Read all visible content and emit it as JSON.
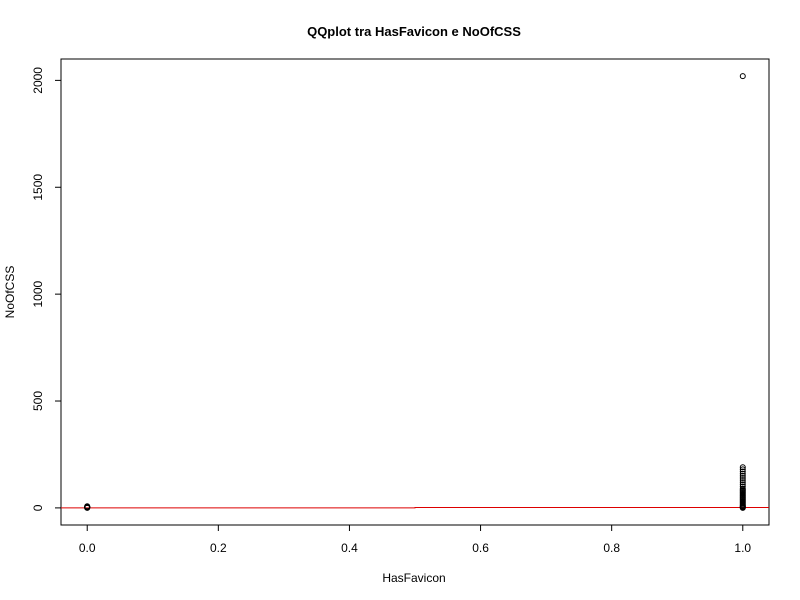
{
  "chart_data": {
    "type": "scatter",
    "title": "QQplot tra HasFavicon e NoOfCSS",
    "xlabel": "HasFavicon",
    "ylabel": "NoOfCSS",
    "xlim": [
      -0.04,
      1.04
    ],
    "ylim": [
      -80,
      2100
    ],
    "xticks": [
      0.0,
      0.2,
      0.4,
      0.6,
      0.8,
      1.0
    ],
    "xtick_labels": [
      "0.0",
      "0.2",
      "0.4",
      "0.6",
      "0.8",
      "1.0"
    ],
    "yticks": [
      0,
      500,
      1000,
      1500,
      2000
    ],
    "ytick_labels": [
      "0",
      "500",
      "1000",
      "1500",
      "2000"
    ],
    "grid": false,
    "series": [
      {
        "name": "points",
        "marker": "open-circle",
        "color": "#000000",
        "x": [
          0,
          0,
          0,
          0,
          0,
          0,
          0,
          0,
          1,
          1,
          1,
          1,
          1,
          1,
          1,
          1,
          1,
          1,
          1,
          1,
          1,
          1,
          1,
          1,
          1,
          1,
          1,
          1,
          1,
          1,
          1,
          1,
          1,
          1,
          1,
          1,
          1,
          1,
          1,
          1
        ],
        "y": [
          0,
          1,
          2,
          3,
          4,
          5,
          6,
          8,
          0,
          2,
          5,
          8,
          10,
          15,
          20,
          25,
          30,
          35,
          40,
          45,
          50,
          55,
          60,
          65,
          70,
          75,
          80,
          85,
          90,
          100,
          110,
          120,
          130,
          140,
          150,
          160,
          170,
          180,
          190,
          2020
        ]
      },
      {
        "name": "qqline",
        "type": "step-line",
        "color": "#dd0000",
        "x": [
          -0.04,
          0.5,
          0.5,
          1.04
        ],
        "y": [
          0,
          0,
          2,
          2
        ]
      }
    ]
  }
}
